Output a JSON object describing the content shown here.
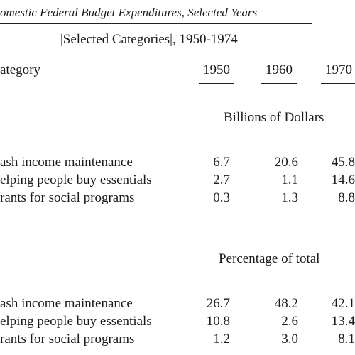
{
  "header": {
    "title": "omestic Federal Budget Expenditures, Selected Years",
    "subtitle": "|Selected Categories|, 1950-1974"
  },
  "table": {
    "column_header": "ategory",
    "columns": [
      "1950",
      "1960",
      "1970"
    ],
    "sections": [
      {
        "heading": "Billions of Dollars",
        "rows": [
          {
            "label": "ash income maintenance",
            "values": [
              "6.7",
              "20.6",
              "45.8"
            ]
          },
          {
            "label": "elping people buy essentials",
            "values": [
              "2.7",
              "1.1",
              "14.6"
            ]
          },
          {
            "label": "rants for social programs",
            "values": [
              "0.3",
              "1.3",
              "8.8"
            ]
          }
        ]
      },
      {
        "heading": "Percentage of total",
        "rows": [
          {
            "label": "ash income maintenance",
            "values": [
              "26.7",
              "48.2",
              "42.1"
            ]
          },
          {
            "label": "elping people buy essentials",
            "values": [
              "10.8",
              "2.6",
              "13.4"
            ]
          },
          {
            "label": "rants for social programs",
            "values": [
              "1.2",
              "3.0",
              "8.1"
            ]
          }
        ]
      }
    ]
  }
}
